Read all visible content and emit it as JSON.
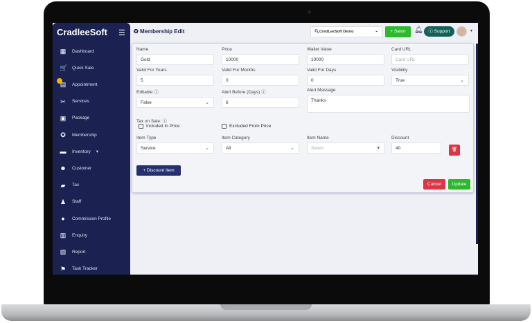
{
  "app": {
    "logo": "CradleeSoft",
    "page_title": "Membership Edit"
  },
  "sidebar": {
    "items": [
      {
        "label": "Dashboard",
        "icon": "dashboard-icon",
        "glyph": "▦"
      },
      {
        "label": "Quick Sale",
        "icon": "cart-icon",
        "glyph": "🛒"
      },
      {
        "label": "Appointment",
        "icon": "calendar-icon",
        "glyph": "▤"
      },
      {
        "label": "Services",
        "icon": "scissors-icon",
        "glyph": "✂"
      },
      {
        "label": "Package",
        "icon": "package-icon",
        "glyph": "▣"
      },
      {
        "label": "Membership",
        "icon": "membership-icon",
        "glyph": "✪"
      },
      {
        "label": "Inventory",
        "icon": "inventory-icon",
        "glyph": "▬"
      },
      {
        "label": "Customer",
        "icon": "customer-icon",
        "glyph": "☻"
      },
      {
        "label": "Tax",
        "icon": "tax-icon",
        "glyph": "▰"
      },
      {
        "label": "Staff",
        "icon": "staff-icon",
        "glyph": "♟"
      },
      {
        "label": "Commission Profile",
        "icon": "commission-icon",
        "glyph": "●"
      },
      {
        "label": "Enquiry",
        "icon": "enquiry-icon",
        "glyph": "▥"
      },
      {
        "label": "Report",
        "icon": "report-icon",
        "glyph": "▧"
      },
      {
        "label": "Task Tracker",
        "icon": "task-icon",
        "glyph": "⚑"
      }
    ]
  },
  "header": {
    "branch": "CredLeeSoft Demo",
    "salon_button": "+ Salon",
    "support_button": "Support"
  },
  "form": {
    "name": {
      "label": "Name",
      "value": "Gold"
    },
    "price": {
      "label": "Price",
      "value": "10000"
    },
    "wallet": {
      "label": "Wallet Value",
      "value": "10000"
    },
    "card_url": {
      "label": "Card URL",
      "placeholder": "Card URL"
    },
    "years": {
      "label": "Valid For Years",
      "value": "5"
    },
    "months": {
      "label": "Valid For Months",
      "value": "0"
    },
    "days": {
      "label": "Valid For Days",
      "value": "0"
    },
    "visibility": {
      "label": "Visibility",
      "value": "True"
    },
    "editable": {
      "label": "Editable ⓘ",
      "value": "False"
    },
    "alert_before": {
      "label": "Alert Before (Days) ⓘ",
      "value": "6"
    },
    "alert_message": {
      "label": "Alert Massage",
      "value": "Thanks"
    },
    "tax_label": "Tax on Sale: ⓘ",
    "included": "Included In Price",
    "excluded": "Excluded From Price",
    "item_type": {
      "label": "Item Type",
      "value": "Service"
    },
    "item_category": {
      "label": "Item Category",
      "value": "All"
    },
    "item_name": {
      "label": "Item Name",
      "placeholder": "Select"
    },
    "discount": {
      "label": "Discount",
      "value": "40"
    },
    "add_discount": "+ Discount Item",
    "cancel": "Cancel",
    "update": "Update"
  },
  "colors": {
    "sidebar": "#1b2150",
    "green": "#2db82d",
    "red": "#dc3545",
    "support": "#16605a"
  }
}
